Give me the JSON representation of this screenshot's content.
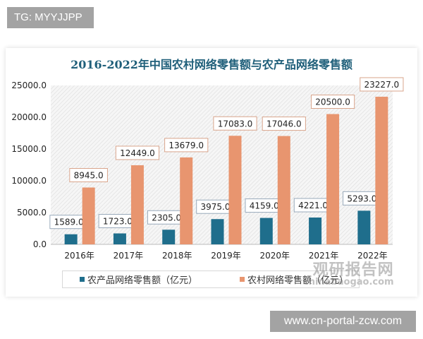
{
  "overlay": {
    "top_left_badge": "TG: MYYJJPP",
    "bottom_right_badge": "www.cn-portal-zcw.com",
    "watermark_cn": "观研报告网",
    "watermark_url": "chinabaogao.com"
  },
  "chart_data": {
    "type": "bar",
    "title": "2016-2022年中国农村网络零售额与农产品网络零售额",
    "categories": [
      "2016年",
      "2017年",
      "2018年",
      "2019年",
      "2020年",
      "2021年",
      "2022年"
    ],
    "series": [
      {
        "name": "农产品网络零售额（亿元）",
        "color": "#1f6e8c",
        "values": [
          1589.0,
          1723.0,
          2305.0,
          3975.0,
          4159.0,
          4221.0,
          5293.0
        ]
      },
      {
        "name": "农村网络零售额（亿元）",
        "color": "#e8956f",
        "values": [
          8945.0,
          12449.0,
          13679.0,
          17083.0,
          17046.0,
          20500.0,
          23227.0
        ]
      }
    ],
    "ylim": [
      0,
      25000
    ],
    "yticks": [
      "0.0",
      "5000.0",
      "10000.0",
      "15000.0",
      "20000.0",
      "25000.0"
    ],
    "grid": false,
    "legend": "bottom",
    "data_labels": true
  }
}
